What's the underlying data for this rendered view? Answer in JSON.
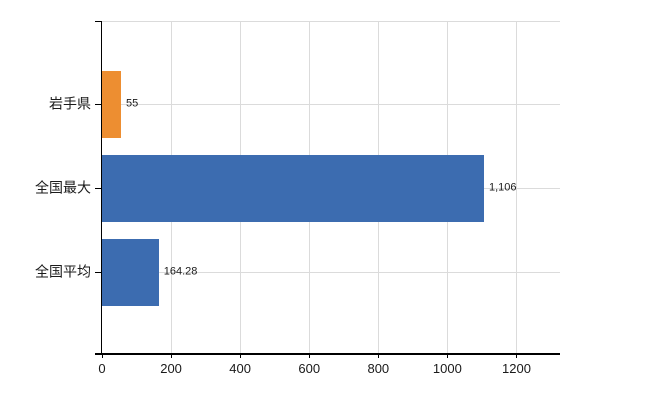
{
  "chart_data": {
    "type": "bar",
    "orientation": "horizontal",
    "title": "",
    "xlabel": "",
    "ylabel": "",
    "categories": [
      "岩手県",
      "全国最大",
      "全国平均"
    ],
    "values": [
      55,
      1106,
      164.28
    ],
    "value_labels": [
      "55",
      "1,106",
      "164.28"
    ],
    "bar_colors": [
      "#ED8E31",
      "#3C6CB0",
      "#3C6CB0"
    ],
    "x_ticks": [
      0,
      200,
      400,
      600,
      800,
      1000,
      1200
    ],
    "x_tick_labels": [
      "0",
      "200",
      "400",
      "600",
      "800",
      "1000",
      "1200"
    ],
    "xlim": [
      0,
      1326
    ],
    "grid": true,
    "legend": false,
    "colors": {
      "axis": "#000000",
      "gridline": "#DBDBDB",
      "text": "#1A1A1A",
      "background": "#FFFFFF"
    }
  }
}
